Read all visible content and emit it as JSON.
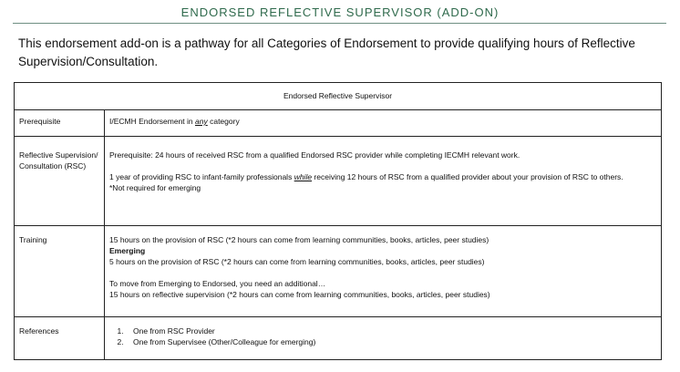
{
  "title": "ENDORSED REFLECTIVE SUPERVISOR (ADD-ON)",
  "intro": "This endorsement add-on is a pathway for all Categories of Endorsement to provide qualifying hours of Reflective Supervision/Consultation.",
  "table": {
    "header": "Endorsed Reflective Supervisor",
    "prerequisite": {
      "label": "Prerequisite",
      "text_before": "I/ECMH Endorsement in ",
      "emphasis": "any",
      "text_after": " category"
    },
    "rsc": {
      "label": "Reflective Supervision/ Consultation (RSC)",
      "line1": "Prerequisite: 24 hours of received RSC from a qualified Endorsed RSC provider while completing IECMH relevant work.",
      "line2_before": "1 year of providing RSC to infant-family professionals ",
      "line2_emphasis": "while",
      "line2_after": " receiving 12 hours of RSC from a qualified provider about your provision of RSC to others.",
      "line3": "*Not required for emerging"
    },
    "training": {
      "label": "Training",
      "line1": "15 hours on the provision of RSC (*2 hours can come from learning communities, books, articles, peer studies)",
      "emerging_heading": "Emerging",
      "line2": "5 hours on the provision of RSC  (*2 hours can come from learning communities, books, articles, peer studies)",
      "line3": "To move from Emerging to Endorsed, you need an additional…",
      "line4": "15 hours on reflective supervision (*2 hours can come from learning communities, books, articles, peer studies)"
    },
    "references": {
      "label": "References",
      "items": [
        "One from RSC Provider",
        "One from Supervisee (Other/Colleague for emerging)"
      ]
    }
  }
}
